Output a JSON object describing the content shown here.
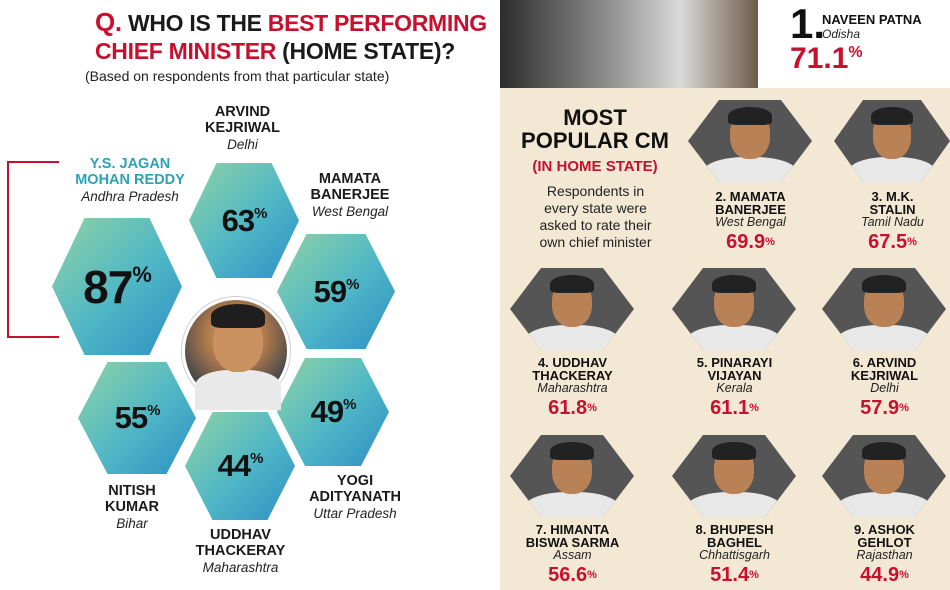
{
  "left": {
    "q_prefix": "Q.",
    "title_part1": "WHO IS THE ",
    "title_red1": "BEST PERFORMING",
    "title_red2": "CHIEF MINISTER",
    "title_part2": " (HOME STATE)?",
    "subtitle": "(Based on respondents from that particular state)",
    "leaders": [
      {
        "name1": "Y.S. JAGAN",
        "name2": "MOHAN REDDY",
        "state": "Andhra Pradesh",
        "pct": "87"
      },
      {
        "name1": "ARVIND",
        "name2": "KEJRIWAL",
        "state": "Delhi",
        "pct": "63"
      },
      {
        "name1": "MAMATA",
        "name2": "BANERJEE",
        "state": "West Bengal",
        "pct": "59"
      },
      {
        "name1": "YOGI",
        "name2": "ADITYANATH",
        "state": "Uttar Pradesh",
        "pct": "49"
      },
      {
        "name1": "UDDHAV",
        "name2": "THACKERAY",
        "state": "Maharashtra",
        "pct": "44"
      },
      {
        "name1": "NITISH",
        "name2": "KUMAR",
        "state": "Bihar",
        "pct": "55"
      }
    ],
    "pct_sign": "%"
  },
  "right": {
    "rank1_num": "1.",
    "rank1_name": "NAVEEN PATNA",
    "rank1_state": "Odisha",
    "rank1_pct": "71.1",
    "title_l1": "MOST",
    "title_l2": "POPULAR CM",
    "title_sub": "(IN HOME STATE)",
    "desc_l1": "Respondents in",
    "desc_l2": "every state were",
    "desc_l3": "asked to rate their",
    "desc_l4": "own chief minister",
    "cms": [
      {
        "l1": "2. MAMATA",
        "l2": "BANERJEE",
        "state": "West Bengal",
        "pct": "69.9"
      },
      {
        "l1": "3. M.K.",
        "l2": "STALIN",
        "state": "Tamil Nadu",
        "pct": "67.5"
      },
      {
        "l1": "4. UDDHAV",
        "l2": "THACKERAY",
        "state": "Maharashtra",
        "pct": "61.8"
      },
      {
        "l1": "5. PINARAYI",
        "l2": "VIJAYAN",
        "state": "Kerala",
        "pct": "61.1"
      },
      {
        "l1": "6. ARVIND",
        "l2": "KEJRIWAL",
        "state": "Delhi",
        "pct": "57.9"
      },
      {
        "l1": "7. HIMANTA",
        "l2": "BISWA SARMA",
        "state": "Assam",
        "pct": "56.6"
      },
      {
        "l1": "8. BHUPESH",
        "l2": "BAGHEL",
        "state": "Chhattisgarh",
        "pct": "51.4"
      },
      {
        "l1": "9. ASHOK",
        "l2": "GEHLOT",
        "state": "Rajasthan",
        "pct": "44.9"
      }
    ],
    "pct_sign": "%"
  }
}
